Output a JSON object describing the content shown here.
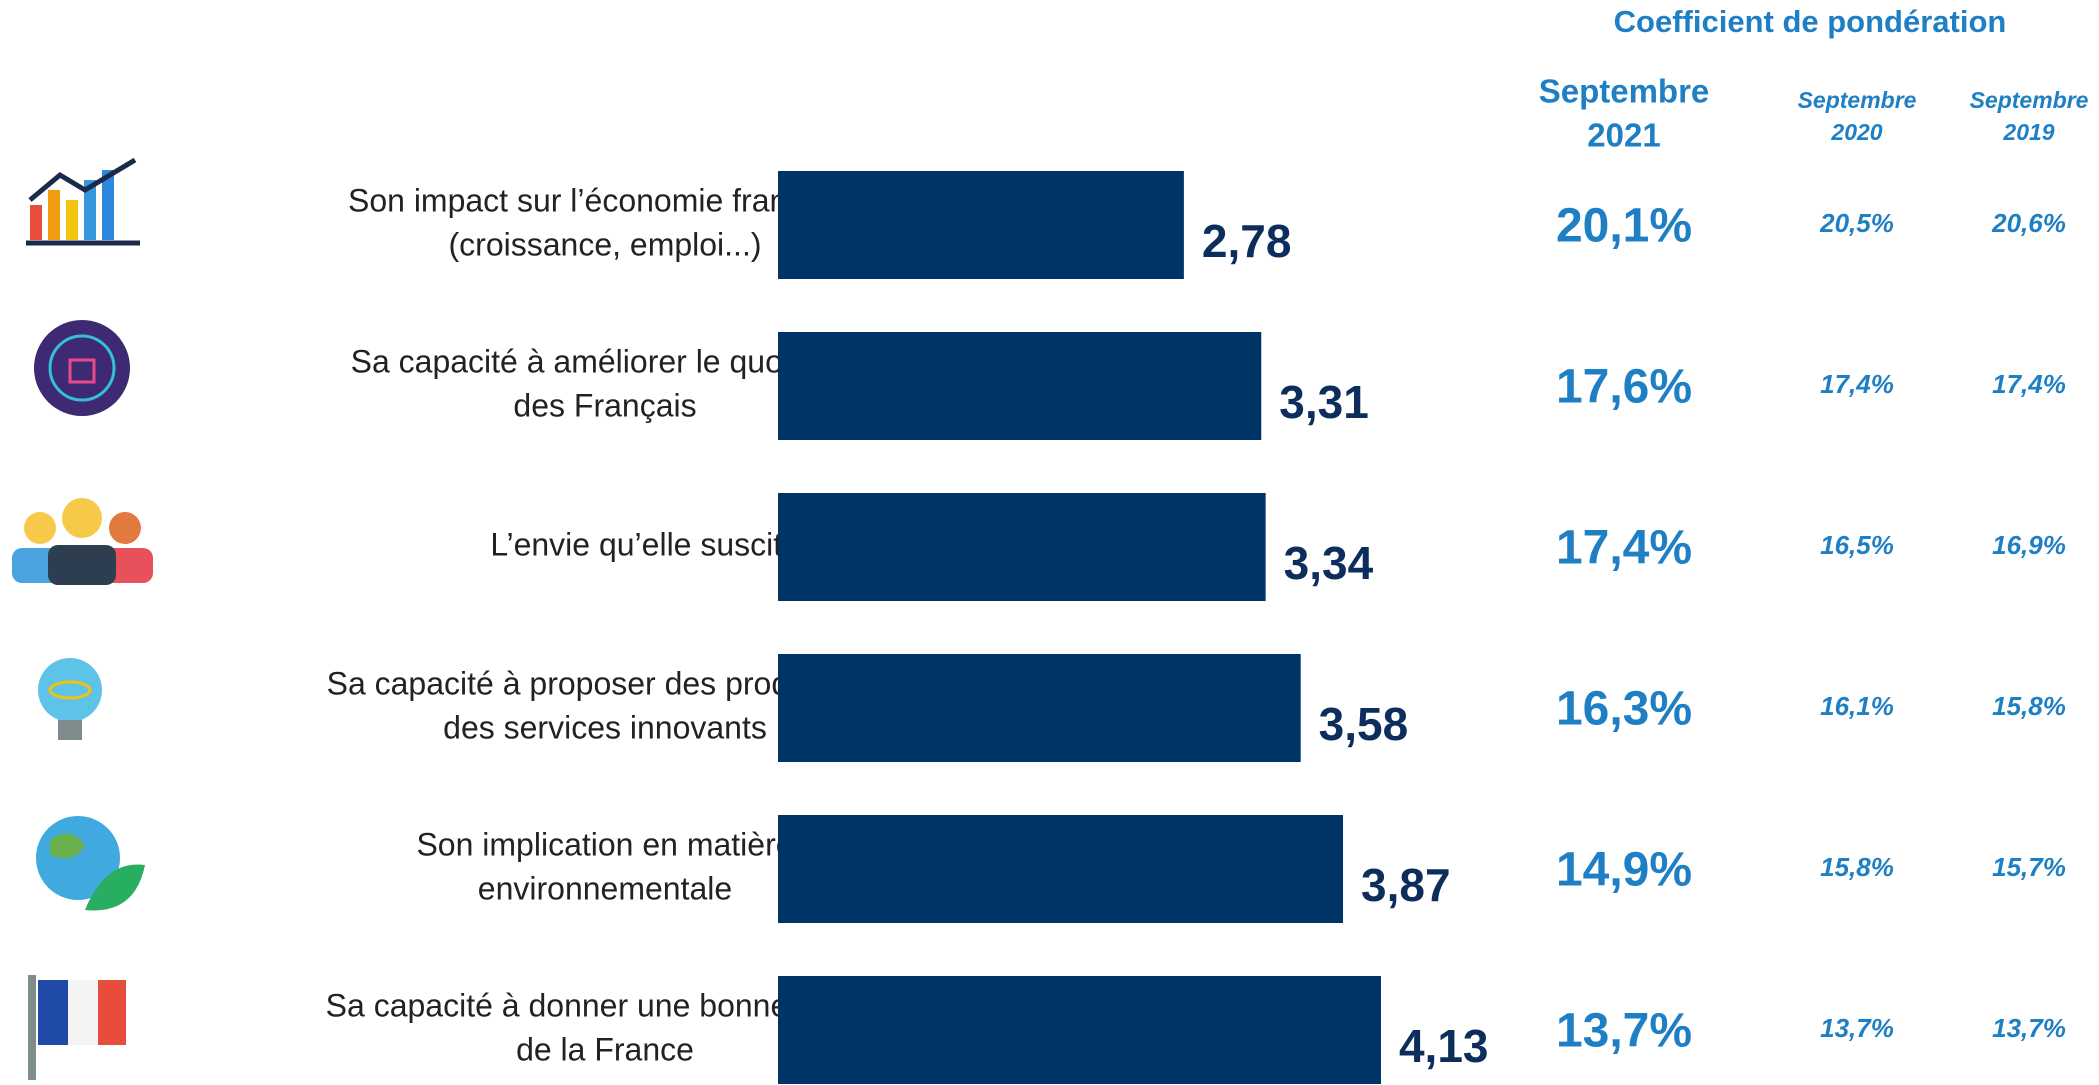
{
  "chart_data": {
    "type": "bar",
    "orientation": "horizontal",
    "color": "#003366",
    "categories": [
      [
        "Son impact sur l’économie française",
        "(croissance, emploi...)"
      ],
      [
        "Sa capacité à améliorer le quotidien",
        "des Français"
      ],
      [
        "L’envie qu’elle suscite d’y travailler"
      ],
      [
        "Sa capacité à proposer des produits ou",
        "des services innovants"
      ],
      [
        "Son implication en matière",
        "environnementale"
      ],
      [
        "Sa capacité à donner une bonne image",
        "de la France"
      ]
    ],
    "values": [
      2.78,
      3.31,
      3.34,
      3.58,
      3.87,
      4.13
    ],
    "value_labels": [
      "2,78",
      "3,31",
      "3,34",
      "3,58",
      "3,87",
      "4,13"
    ]
  },
  "weights": {
    "title": "Coefficient de pondération",
    "columns": [
      [
        "Septembre",
        "2021"
      ],
      [
        "Septembre",
        "2020"
      ],
      [
        "Septembre",
        "2019"
      ]
    ],
    "rows": [
      [
        "20,1%",
        "20,5%",
        "20,6%"
      ],
      [
        "17,6%",
        "17,4%",
        "17,4%"
      ],
      [
        "17,4%",
        "16,5%",
        "16,9%"
      ],
      [
        "16,3%",
        "16,1%",
        "15,8%"
      ],
      [
        "14,9%",
        "15,8%",
        "15,7%"
      ],
      [
        "13,7%",
        "13,7%",
        "13,7%"
      ]
    ]
  }
}
